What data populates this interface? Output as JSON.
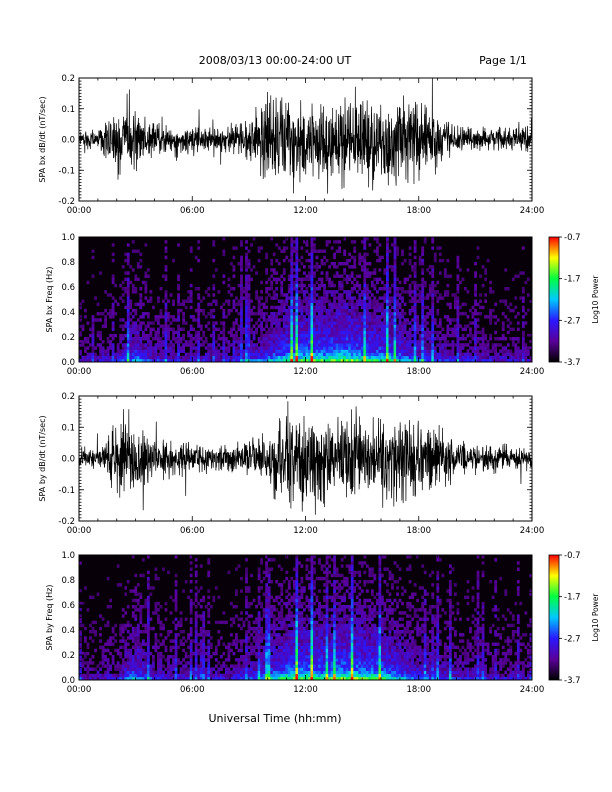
{
  "header": {
    "title": "2008/03/13  00:00-24:00 UT",
    "page": "Page 1/1"
  },
  "footer": {
    "xlabel": "Universal Time (hh:mm)"
  },
  "colors": {
    "waveform": "#000000",
    "spec_background": "#080008",
    "colormap": [
      "#000000",
      "#5a009a",
      "#2a18ff",
      "#00c8ff",
      "#00ff40",
      "#ffff00",
      "#ff0000"
    ]
  },
  "chart_data": [
    {
      "type": "line",
      "ylabel": "SPA bx dB/dt (nT/sec)",
      "xlim": [
        0,
        24
      ],
      "ylim": [
        -0.2,
        0.2
      ],
      "xticks": [
        "00:00",
        "06:00",
        "12:00",
        "18:00",
        "24:00"
      ],
      "yticks": [
        "0.2",
        "0.1",
        "0.0",
        "-0.1",
        "-0.2"
      ],
      "activity_profile": {
        "hour": [
          0,
          1,
          1.8,
          2.5,
          3.0,
          4.0,
          5.5,
          7.0,
          8.5,
          9.5,
          10.0,
          11.0,
          12.0,
          13.0,
          14.0,
          15.0,
          16.0,
          17.0,
          18.0,
          19.0,
          20.0,
          21.0,
          22.0,
          23.0,
          24.0
        ],
        "amplitude": [
          0.035,
          0.04,
          0.13,
          0.2,
          0.16,
          0.08,
          0.06,
          0.06,
          0.07,
          0.12,
          0.2,
          0.2,
          0.2,
          0.2,
          0.2,
          0.2,
          0.2,
          0.2,
          0.2,
          0.12,
          0.07,
          0.06,
          0.06,
          0.05,
          0.05
        ]
      }
    },
    {
      "type": "heatmap",
      "ylabel": "SPA bx Freq (Hz)",
      "xlim": [
        0,
        24
      ],
      "ylim": [
        0,
        1.0
      ],
      "xticks": [
        "00:00",
        "06:00",
        "12:00",
        "18:00",
        "24:00"
      ],
      "yticks": [
        "1.0",
        "0.8",
        "0.6",
        "0.4",
        "0.2",
        "0.0"
      ],
      "colorbar": {
        "title": "Log10 Power",
        "ticks": [
          "-0.7",
          "-1.7",
          "-2.7",
          "-3.7"
        ],
        "range": [
          -3.7,
          -0.7
        ]
      },
      "activity_profile": {
        "hour": [
          0,
          2,
          3,
          4,
          6,
          8,
          10,
          11,
          12,
          13,
          14,
          15,
          16,
          17,
          18,
          20,
          22,
          24
        ],
        "intensity": [
          0.25,
          0.3,
          0.55,
          0.35,
          0.3,
          0.3,
          0.55,
          0.7,
          0.8,
          0.75,
          0.85,
          0.75,
          0.7,
          0.6,
          0.45,
          0.35,
          0.3,
          0.25
        ]
      }
    },
    {
      "type": "line",
      "ylabel": "SPA by dB/dt (nT/sec)",
      "xlim": [
        0,
        24
      ],
      "ylim": [
        -0.2,
        0.2
      ],
      "xticks": [
        "00:00",
        "06:00",
        "12:00",
        "18:00",
        "24:00"
      ],
      "yticks": [
        "0.2",
        "0.1",
        "0.0",
        "-0.1",
        "-0.2"
      ],
      "activity_profile": {
        "hour": [
          0,
          1,
          1.8,
          2.5,
          3.0,
          4.0,
          5.5,
          7.0,
          8.5,
          9.5,
          10.0,
          11.0,
          12.0,
          13.0,
          14.0,
          15.0,
          16.0,
          17.0,
          18.0,
          19.0,
          20.0,
          21.0,
          22.0,
          23.0,
          24.0
        ],
        "amplitude": [
          0.035,
          0.045,
          0.14,
          0.2,
          0.16,
          0.09,
          0.07,
          0.06,
          0.07,
          0.1,
          0.16,
          0.2,
          0.2,
          0.2,
          0.18,
          0.16,
          0.16,
          0.2,
          0.2,
          0.14,
          0.08,
          0.06,
          0.06,
          0.05,
          0.05
        ]
      }
    },
    {
      "type": "heatmap",
      "ylabel": "SPA by Freq (Hz)",
      "xlim": [
        0,
        24
      ],
      "ylim": [
        0,
        1.0
      ],
      "xticks": [
        "00:00",
        "06:00",
        "12:00",
        "18:00",
        "24:00"
      ],
      "yticks": [
        "1.0",
        "0.8",
        "0.6",
        "0.4",
        "0.2",
        "0.0"
      ],
      "colorbar": {
        "title": "Log10 Power",
        "ticks": [
          "-0.7",
          "-1.7",
          "-2.7",
          "-3.7"
        ],
        "range": [
          -3.7,
          -0.7
        ]
      },
      "activity_profile": {
        "hour": [
          0,
          2,
          3,
          4,
          6,
          8,
          10,
          11,
          12,
          13,
          14,
          15,
          16,
          17,
          18,
          20,
          22,
          24
        ],
        "intensity": [
          0.25,
          0.3,
          0.6,
          0.35,
          0.3,
          0.3,
          0.55,
          0.75,
          0.8,
          0.75,
          0.85,
          0.8,
          0.75,
          0.6,
          0.45,
          0.35,
          0.3,
          0.25
        ]
      }
    }
  ]
}
